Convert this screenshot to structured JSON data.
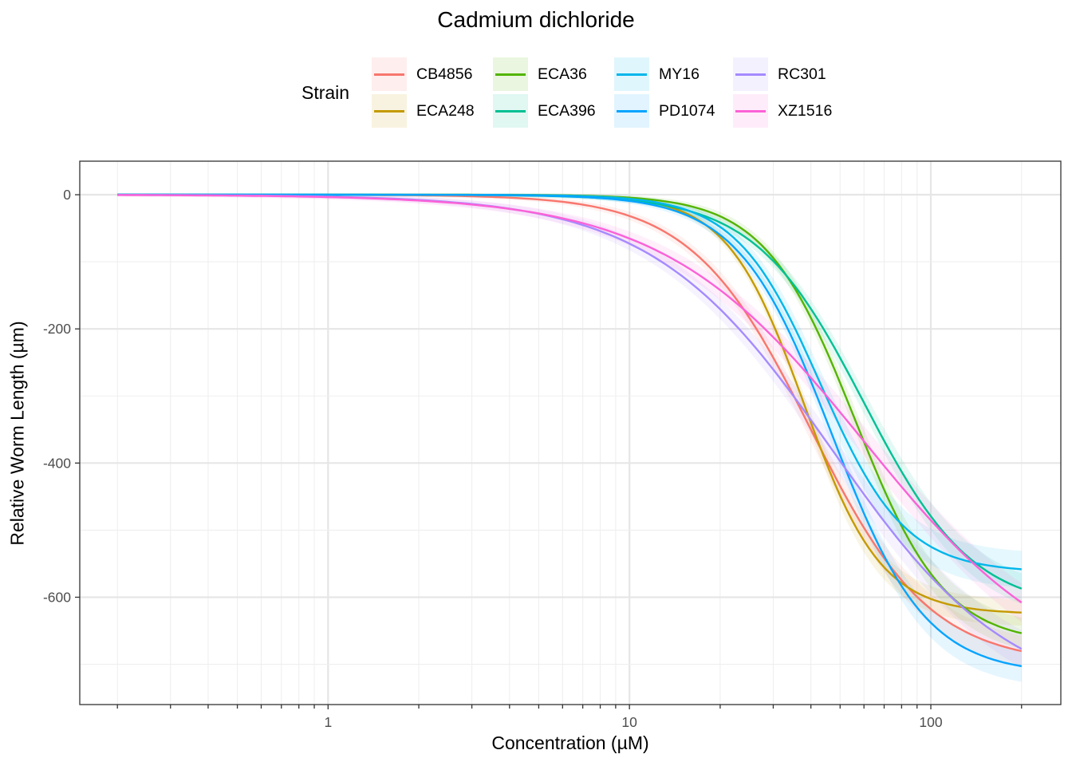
{
  "chart_data": {
    "type": "line",
    "title": "Cadmium dichloride",
    "xlabel": "Concentration (µM)",
    "ylabel": "Relative Worm Length (µm)",
    "xscale": "log10",
    "xlim": [
      0.15,
      270
    ],
    "ylim": [
      -760,
      50
    ],
    "x_ticks": [
      1,
      10,
      100
    ],
    "x_tick_labels": [
      "1",
      "10",
      "100"
    ],
    "y_ticks": [
      0,
      -200,
      -400,
      -600
    ],
    "y_tick_labels": [
      "0",
      "-200",
      "-400",
      "-600"
    ],
    "grid": true,
    "legend_title": "Strain",
    "legend_position": "top",
    "series": [
      {
        "name": "CB4856",
        "color": "#F8766D",
        "ec50": 40,
        "hill": 2.2,
        "bottom": -700,
        "band": 22
      },
      {
        "name": "ECA248",
        "color": "#C49A00",
        "ec50": 38,
        "hill": 3.4,
        "bottom": -625,
        "band": 18
      },
      {
        "name": "ECA36",
        "color": "#53B400",
        "ec50": 56,
        "hill": 2.9,
        "bottom": -670,
        "band": 22
      },
      {
        "name": "ECA396",
        "color": "#00C094",
        "ec50": 60,
        "hill": 2.4,
        "bottom": -620,
        "band": 22
      },
      {
        "name": "MY16",
        "color": "#00B6EB",
        "ec50": 43,
        "hill": 3.1,
        "bottom": -563,
        "band": 26
      },
      {
        "name": "PD1074",
        "color": "#06A4FF",
        "ec50": 47,
        "hill": 2.8,
        "bottom": -715,
        "band": 22
      },
      {
        "name": "RC301",
        "color": "#A58AFF",
        "ec50": 47,
        "hill": 1.45,
        "bottom": -760,
        "band": 28
      },
      {
        "name": "XZ1516",
        "color": "#FB61D7",
        "ec50": 60,
        "hill": 1.3,
        "bottom": -735,
        "band": 30
      }
    ]
  }
}
